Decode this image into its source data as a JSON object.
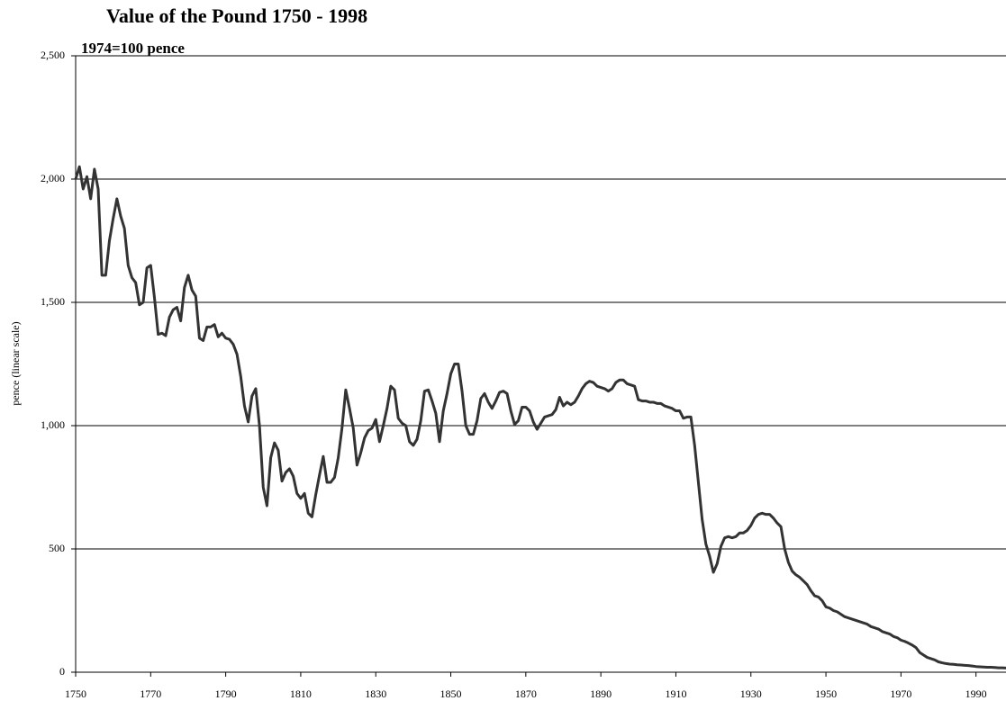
{
  "chart_data": {
    "type": "line",
    "title": "Value of the Pound 1750 - 1998",
    "subtitle": "1974=100 pence",
    "y_label": "pence (linear scale)",
    "x": [
      1750,
      1751,
      1752,
      1753,
      1754,
      1755,
      1756,
      1757,
      1758,
      1759,
      1760,
      1761,
      1762,
      1763,
      1764,
      1765,
      1766,
      1767,
      1768,
      1769,
      1770,
      1771,
      1772,
      1773,
      1774,
      1775,
      1776,
      1777,
      1778,
      1779,
      1780,
      1781,
      1782,
      1783,
      1784,
      1785,
      1786,
      1787,
      1788,
      1789,
      1790,
      1791,
      1792,
      1793,
      1794,
      1795,
      1796,
      1797,
      1798,
      1799,
      1800,
      1801,
      1802,
      1803,
      1804,
      1805,
      1806,
      1807,
      1808,
      1809,
      1810,
      1811,
      1812,
      1813,
      1814,
      1815,
      1816,
      1817,
      1818,
      1819,
      1820,
      1821,
      1822,
      1823,
      1824,
      1825,
      1826,
      1827,
      1828,
      1829,
      1830,
      1831,
      1832,
      1833,
      1834,
      1835,
      1836,
      1837,
      1838,
      1839,
      1840,
      1841,
      1842,
      1843,
      1844,
      1845,
      1846,
      1847,
      1848,
      1849,
      1850,
      1851,
      1852,
      1853,
      1854,
      1855,
      1856,
      1857,
      1858,
      1859,
      1860,
      1861,
      1862,
      1863,
      1864,
      1865,
      1866,
      1867,
      1868,
      1869,
      1870,
      1871,
      1872,
      1873,
      1874,
      1875,
      1876,
      1877,
      1878,
      1879,
      1880,
      1881,
      1882,
      1883,
      1884,
      1885,
      1886,
      1887,
      1888,
      1889,
      1890,
      1891,
      1892,
      1893,
      1894,
      1895,
      1896,
      1897,
      1898,
      1899,
      1900,
      1901,
      1902,
      1903,
      1904,
      1905,
      1906,
      1907,
      1908,
      1909,
      1910,
      1911,
      1912,
      1913,
      1914,
      1915,
      1916,
      1917,
      1918,
      1919,
      1920,
      1921,
      1922,
      1923,
      1924,
      1925,
      1926,
      1927,
      1928,
      1929,
      1930,
      1931,
      1932,
      1933,
      1934,
      1935,
      1936,
      1937,
      1938,
      1939,
      1940,
      1941,
      1942,
      1943,
      1944,
      1945,
      1946,
      1947,
      1948,
      1949,
      1950,
      1951,
      1952,
      1953,
      1954,
      1955,
      1956,
      1957,
      1958,
      1959,
      1960,
      1961,
      1962,
      1963,
      1964,
      1965,
      1966,
      1967,
      1968,
      1969,
      1970,
      1971,
      1972,
      1973,
      1974,
      1975,
      1976,
      1977,
      1978,
      1979,
      1980,
      1981,
      1982,
      1983,
      1984,
      1985,
      1986,
      1987,
      1988,
      1989,
      1990,
      1991,
      1992,
      1993,
      1994,
      1995,
      1996,
      1997,
      1998
    ],
    "series": [
      {
        "color": "#333333",
        "values": [
          2000,
          2050,
          1960,
          2010,
          1920,
          2040,
          1960,
          1610,
          1610,
          1750,
          1840,
          1920,
          1850,
          1800,
          1650,
          1600,
          1580,
          1490,
          1500,
          1640,
          1650,
          1520,
          1370,
          1375,
          1365,
          1440,
          1470,
          1480,
          1425,
          1560,
          1610,
          1550,
          1525,
          1355,
          1345,
          1400,
          1400,
          1410,
          1360,
          1375,
          1355,
          1350,
          1330,
          1290,
          1200,
          1080,
          1015,
          1120,
          1150,
          1000,
          750,
          675,
          870,
          930,
          900,
          775,
          810,
          825,
          795,
          725,
          705,
          725,
          645,
          630,
          720,
          800,
          875,
          770,
          770,
          790,
          870,
          990,
          1145,
          1070,
          990,
          840,
          890,
          950,
          980,
          990,
          1025,
          935,
          1000,
          1070,
          1160,
          1145,
          1030,
          1010,
          1000,
          935,
          920,
          945,
          1020,
          1140,
          1145,
          1100,
          1050,
          935,
          1060,
          1130,
          1210,
          1250,
          1250,
          1140,
          1000,
          965,
          965,
          1020,
          1110,
          1130,
          1095,
          1070,
          1100,
          1135,
          1140,
          1130,
          1060,
          1005,
          1020,
          1075,
          1075,
          1060,
          1015,
          985,
          1010,
          1035,
          1040,
          1045,
          1065,
          1115,
          1080,
          1095,
          1085,
          1095,
          1120,
          1150,
          1170,
          1180,
          1175,
          1160,
          1155,
          1150,
          1140,
          1150,
          1175,
          1185,
          1185,
          1170,
          1165,
          1160,
          1105,
          1100,
          1100,
          1095,
          1095,
          1090,
          1090,
          1080,
          1075,
          1070,
          1060,
          1060,
          1030,
          1035,
          1035,
          920,
          770,
          620,
          520,
          470,
          405,
          440,
          510,
          545,
          550,
          545,
          550,
          565,
          565,
          575,
          595,
          625,
          640,
          645,
          640,
          640,
          625,
          605,
          590,
          500,
          445,
          410,
          395,
          385,
          370,
          355,
          330,
          310,
          305,
          290,
          265,
          260,
          250,
          245,
          235,
          225,
          220,
          215,
          210,
          205,
          200,
          195,
          185,
          180,
          175,
          165,
          160,
          155,
          145,
          140,
          130,
          125,
          118,
          110,
          100,
          80,
          70,
          60,
          55,
          50,
          42,
          38,
          35,
          33,
          32,
          30,
          29,
          28,
          27,
          25,
          23,
          22,
          21,
          20,
          20,
          19,
          18,
          18,
          17
        ]
      }
    ],
    "xlim": [
      1750,
      1998
    ],
    "xticks": [
      1750,
      1770,
      1790,
      1810,
      1830,
      1850,
      1870,
      1890,
      1910,
      1930,
      1950,
      1970,
      1990
    ],
    "ylim": [
      0,
      2500
    ],
    "yticks": [
      0,
      {
        "value": 500,
        "label": "500"
      },
      {
        "value": 1000,
        "label": "1,000"
      },
      {
        "value": 1500,
        "label": "1,500"
      },
      {
        "value": 2000,
        "label": "2,000"
      },
      {
        "value": 2500,
        "label": "2,500"
      }
    ],
    "grid": true
  }
}
